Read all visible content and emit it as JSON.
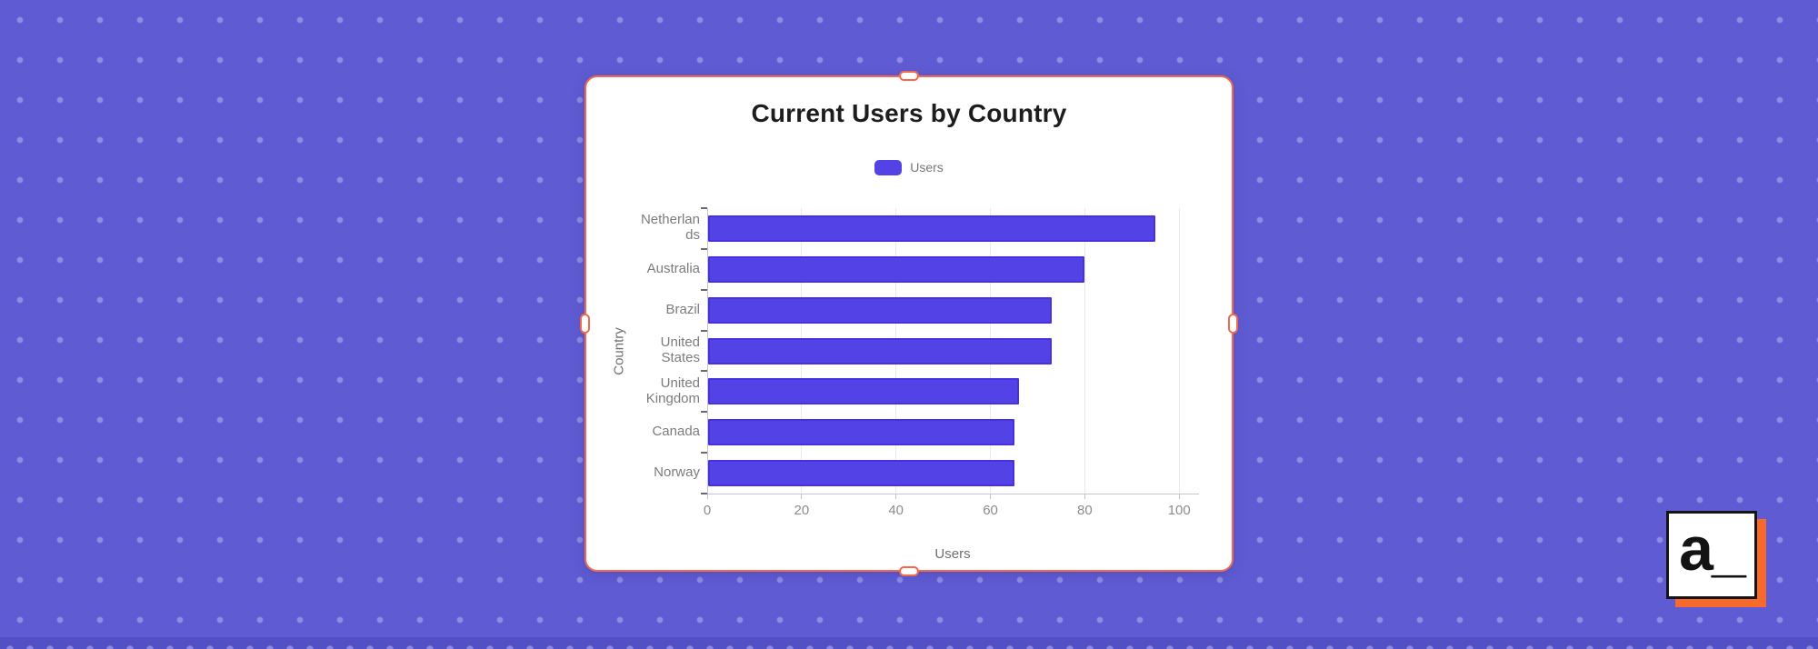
{
  "background": {
    "color": "#5F5CD3",
    "dot_color": "#8F8CE4",
    "bottom_strip_color": "#5350C6",
    "bottom_strip_dot_color": "#8D8ADF"
  },
  "selection": {
    "border_color": "#F5694B"
  },
  "logo": {
    "text": "a_",
    "accent_color": "#F86A2B"
  },
  "chart_data": {
    "type": "bar",
    "orientation": "horizontal",
    "title": "Current Users by Country",
    "xlabel": "Users",
    "ylabel": "Country",
    "legend_position": "top",
    "legend": [
      {
        "label": "Users",
        "color": "#5343E7"
      }
    ],
    "categories": [
      "Netherlands",
      "Australia",
      "Brazil",
      "United States",
      "United Kingdom",
      "Canada",
      "Norway"
    ],
    "category_lines": [
      [
        "Netherlan",
        "ds"
      ],
      [
        "Australia"
      ],
      [
        "Brazil"
      ],
      [
        "United",
        "States"
      ],
      [
        "United",
        "Kingdom"
      ],
      [
        "Canada"
      ],
      [
        "Norway"
      ]
    ],
    "series": [
      {
        "name": "Users",
        "color": "#5343E7",
        "border_color": "#4730E0",
        "values": [
          95,
          80,
          73,
          73,
          66,
          65,
          65
        ]
      }
    ],
    "x_ticks": [
      0,
      20,
      40,
      60,
      80,
      100
    ],
    "xlim": [
      0,
      104
    ],
    "grid": true
  }
}
